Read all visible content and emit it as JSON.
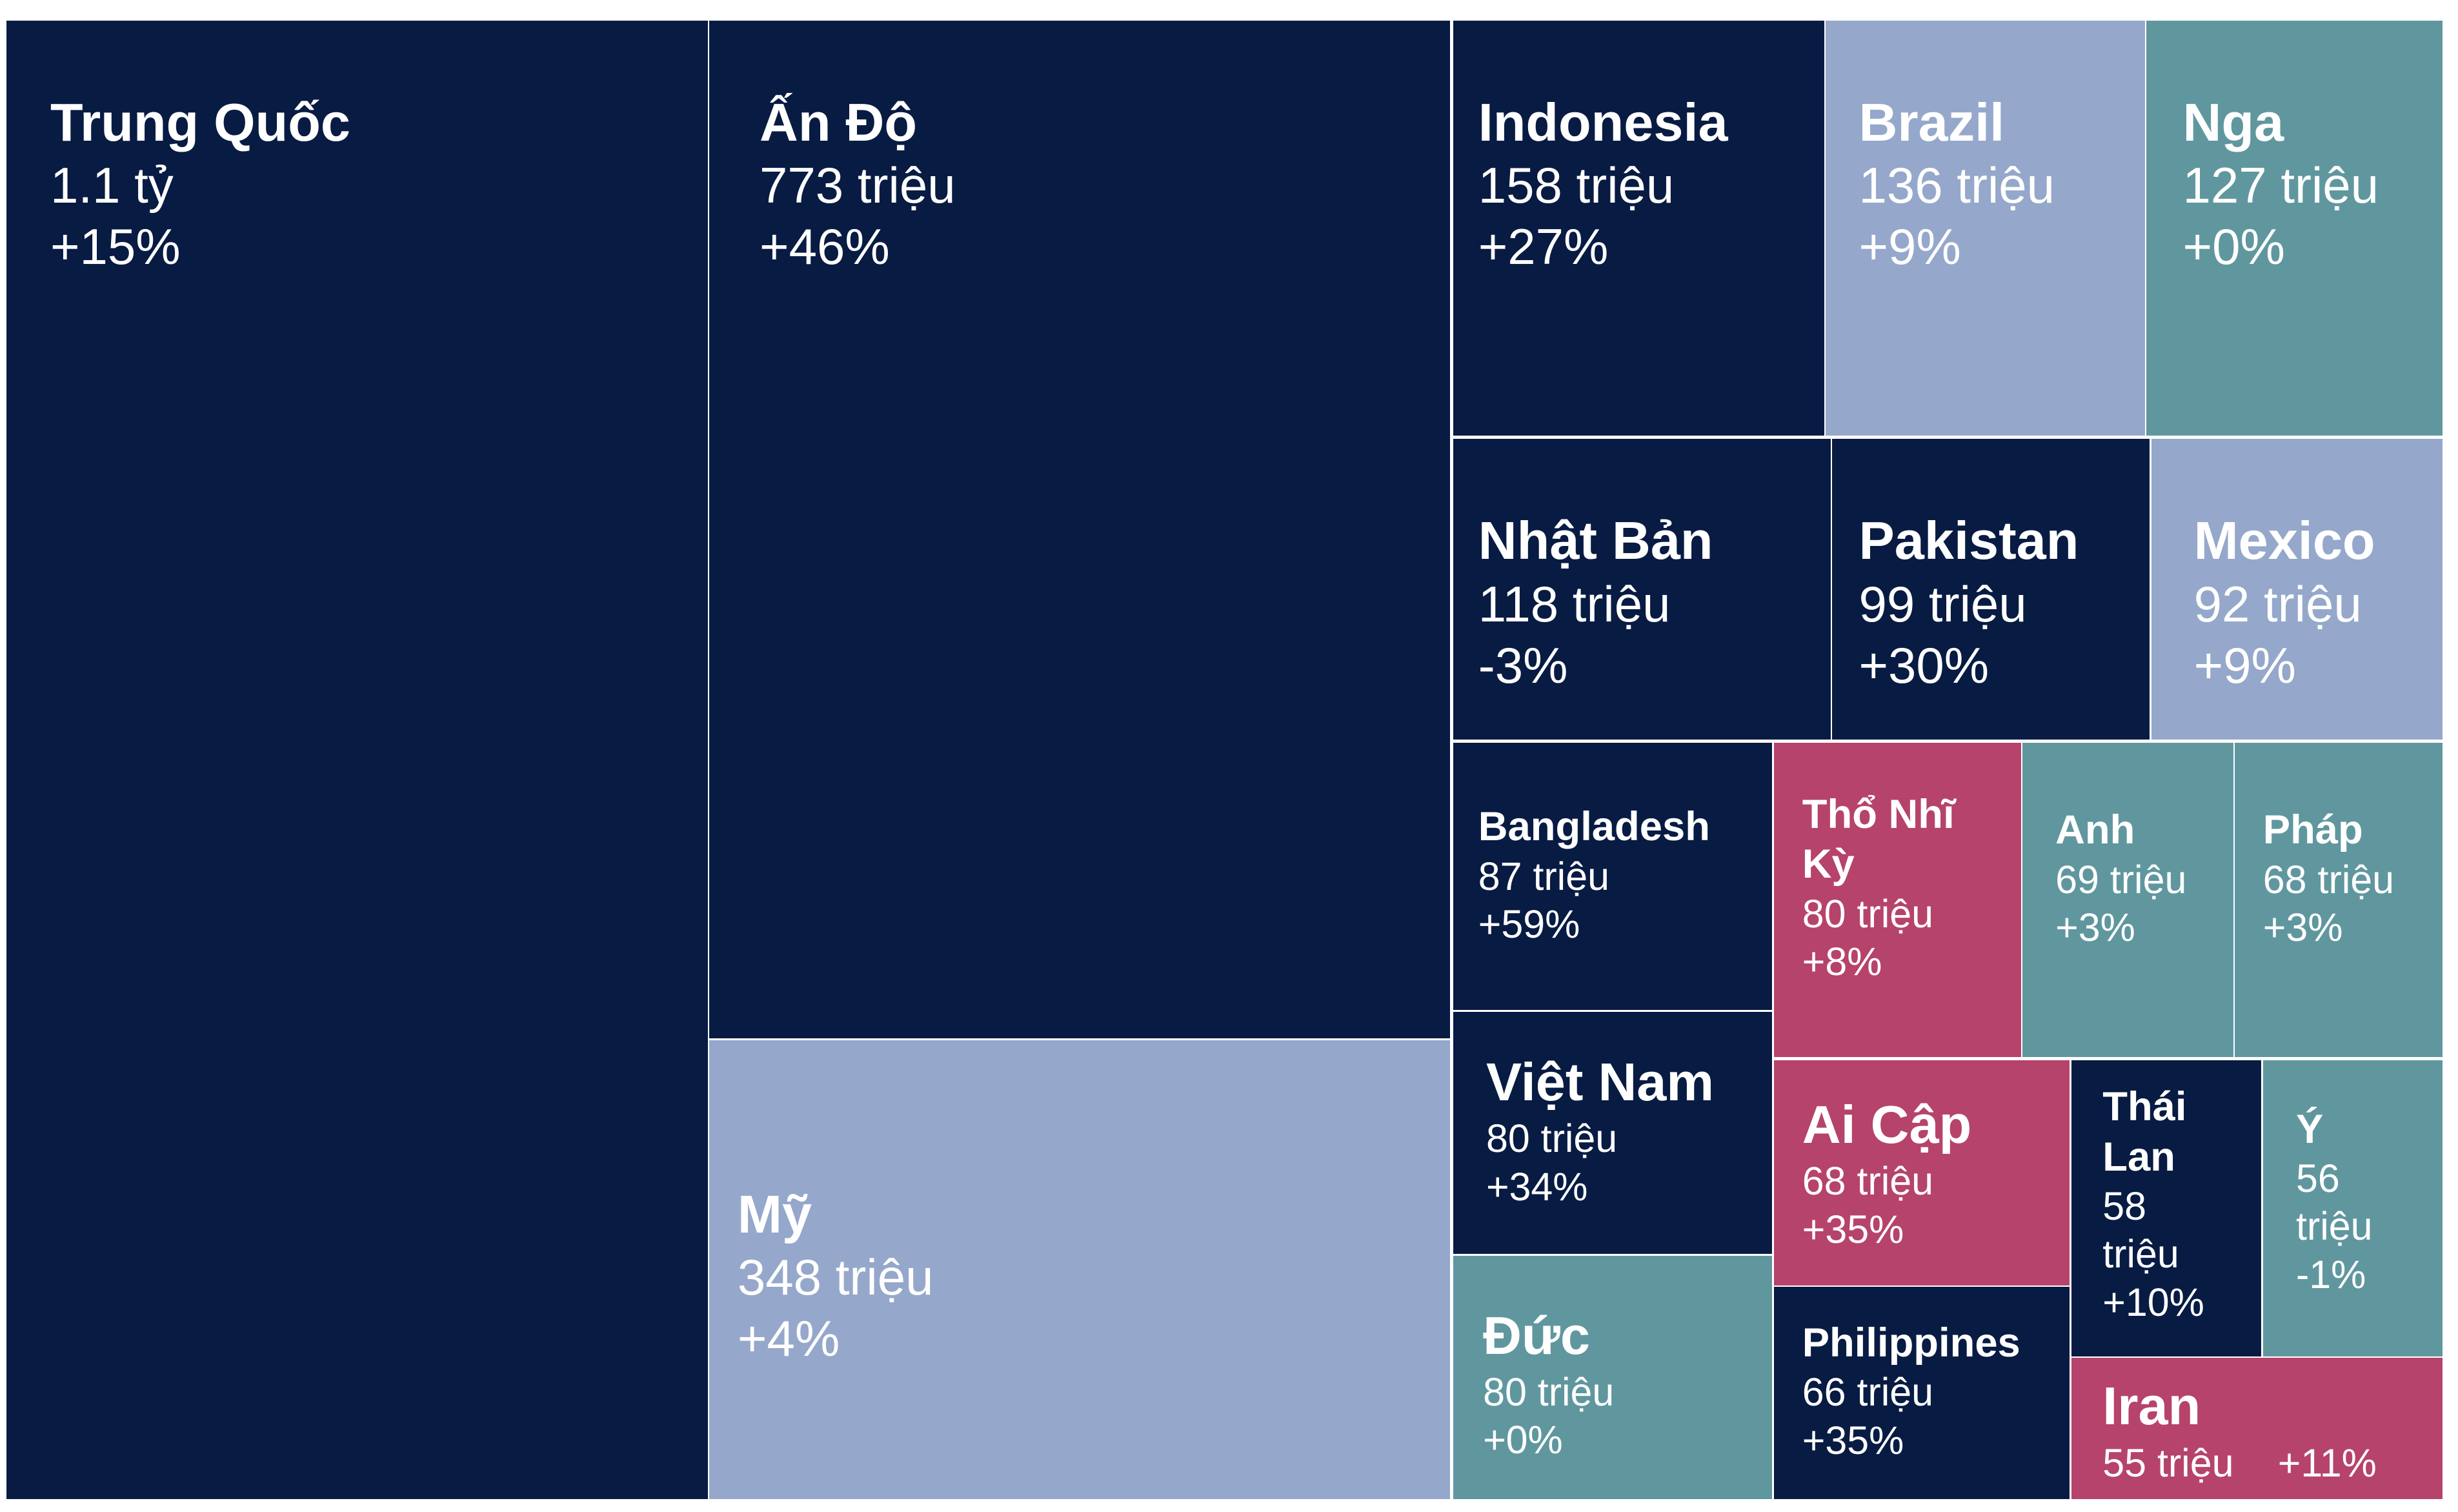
{
  "chart_data": {
    "type": "treemap",
    "title": "",
    "colors": {
      "navy": "#081b43",
      "periwinkle": "#95a8cb",
      "teal": "#60979f",
      "rose": "#b6436b"
    },
    "items": [
      {
        "name": "Trung Quốc",
        "value": 1100,
        "value_label": "1.1 tỷ",
        "change": "+15%",
        "color": "#081b43"
      },
      {
        "name": "Ấn Độ",
        "value": 773,
        "value_label": "773 triệu",
        "change": "+46%",
        "color": "#081b43"
      },
      {
        "name": "Mỹ",
        "value": 348,
        "value_label": "348 triệu",
        "change": "+4%",
        "color": "#95a8cb"
      },
      {
        "name": "Indonesia",
        "value": 158,
        "value_label": "158 triệu",
        "change": "+27%",
        "color": "#081b43"
      },
      {
        "name": "Brazil",
        "value": 136,
        "value_label": "136 triệu",
        "change": "+9%",
        "color": "#95a8cb"
      },
      {
        "name": "Nga",
        "value": 127,
        "value_label": "127 triệu",
        "change": "+0%",
        "color": "#60979f"
      },
      {
        "name": "Nhật Bản",
        "value": 118,
        "value_label": "118 triệu",
        "change": "-3%",
        "color": "#081b43"
      },
      {
        "name": "Pakistan",
        "value": 99,
        "value_label": "99 triệu",
        "change": "+30%",
        "color": "#081b43"
      },
      {
        "name": "Mexico",
        "value": 92,
        "value_label": "92 triệu",
        "change": "+9%",
        "color": "#95a8cb"
      },
      {
        "name": "Bangladesh",
        "value": 87,
        "value_label": "87 triệu",
        "change": "+59%",
        "color": "#081b43"
      },
      {
        "name": "Thổ Nhĩ Kỳ",
        "value": 80,
        "value_label": "80 triệu",
        "change": "+8%",
        "color": "#b6436b"
      },
      {
        "name": "Anh",
        "value": 69,
        "value_label": "69 triệu",
        "change": "+3%",
        "color": "#60979f"
      },
      {
        "name": "Pháp",
        "value": 68,
        "value_label": "68 triệu",
        "change": "+3%",
        "color": "#60979f"
      },
      {
        "name": "Việt Nam",
        "value": 80,
        "value_label": "80 triệu",
        "change": "+34%",
        "color": "#081b43"
      },
      {
        "name": "Ai Cập",
        "value": 68,
        "value_label": "68 triệu",
        "change": "+35%",
        "color": "#b6436b"
      },
      {
        "name": "Thái Lan",
        "value": 58,
        "value_label": "58 triệu",
        "change": "+10%",
        "color": "#081b43"
      },
      {
        "name": "Ý",
        "value": 56,
        "value_label": "56 triệu",
        "change": "-1%",
        "color": "#60979f"
      },
      {
        "name": "Đức",
        "value": 80,
        "value_label": "80 triệu",
        "change": "+0%",
        "color": "#60979f"
      },
      {
        "name": "Philippines",
        "value": 66,
        "value_label": "66 triệu",
        "change": "+35%",
        "color": "#081b43"
      },
      {
        "name": "Iran",
        "value": 55,
        "value_label": "55 triệu",
        "change": "+11%",
        "color": "#b6436b"
      }
    ]
  }
}
